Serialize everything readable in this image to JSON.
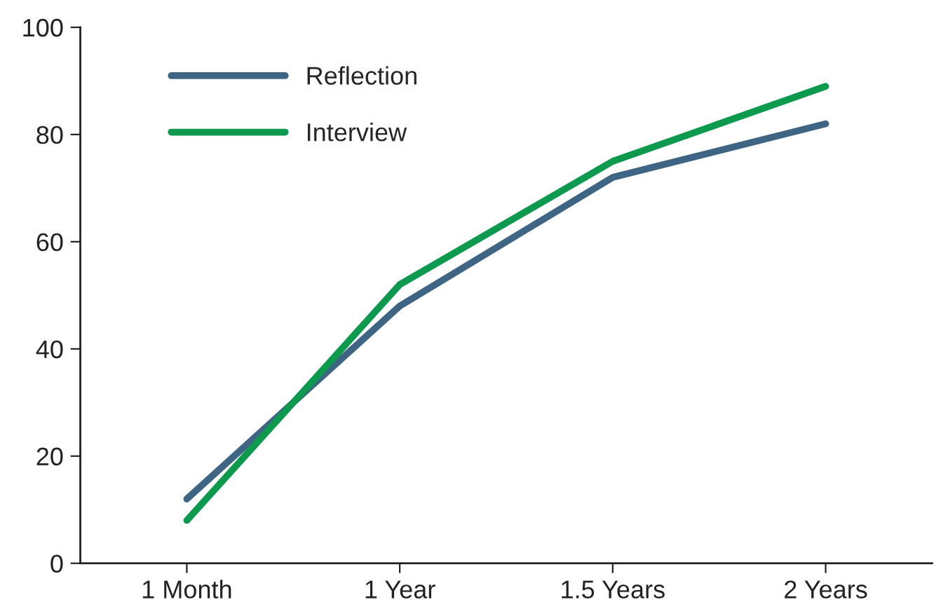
{
  "chart_data": {
    "type": "line",
    "categories": [
      "1 Month",
      "1 Year",
      "1.5 Years",
      "2 Years"
    ],
    "series": [
      {
        "name": "Reflection",
        "color": "#3f6585",
        "values": [
          12,
          48,
          72,
          82
        ]
      },
      {
        "name": "Interview",
        "color": "#0e9a4e",
        "values": [
          8,
          52,
          75,
          89
        ]
      }
    ],
    "ylim": [
      0,
      100
    ],
    "yticks": [
      0,
      20,
      40,
      60,
      80,
      100
    ],
    "grid": false,
    "legend": "top left",
    "marker": "none",
    "line_style": "solid"
  }
}
